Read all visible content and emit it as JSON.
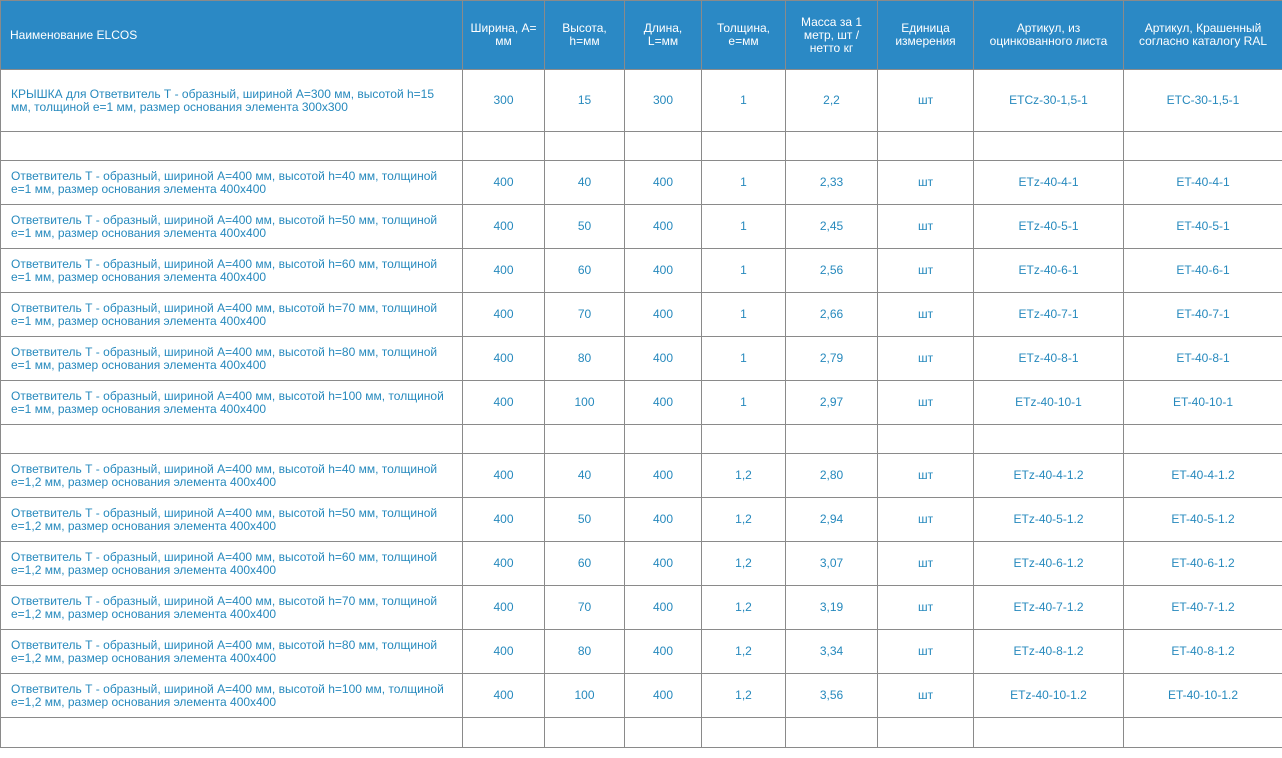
{
  "columns": [
    {
      "label": "Наименование ELCOS"
    },
    {
      "label": "Ширина, A= мм"
    },
    {
      "label": "Высота, h=мм"
    },
    {
      "label": "Длина, L=мм"
    },
    {
      "label": "Толщина, е=мм"
    },
    {
      "label": "Масса за 1 метр, шт / нетто кг"
    },
    {
      "label": "Единица измерения"
    },
    {
      "label": "Артикул, из оцинкованного листа"
    },
    {
      "label": "Артикул, Крашенный согласно каталогу RAL"
    }
  ],
  "rows": [
    {
      "kind": "data",
      "name": "КРЫШКА для Ответвитель Т - образный, шириной А=300 мм, высотой h=15 мм, толщиной е=1 мм, размер основания элемента 300х300",
      "width": "300",
      "height": "15",
      "length": "300",
      "thickness": "1",
      "mass": "2,2",
      "unit": "шт",
      "sku_galv": "ETCz-30-1,5-1",
      "sku_ral": "ETC-30-1,5-1"
    },
    {
      "kind": "spacer"
    },
    {
      "kind": "data",
      "name": "Ответвитель Т - образный, шириной А=400 мм, высотой h=40 мм, толщиной е=1 мм, размер основания элемента 400х400",
      "width": "400",
      "height": "40",
      "length": "400",
      "thickness": "1",
      "mass": "2,33",
      "unit": "шт",
      "sku_galv": "ETz-40-4-1",
      "sku_ral": "ET-40-4-1"
    },
    {
      "kind": "data",
      "name": "Ответвитель Т - образный, шириной А=400 мм, высотой h=50 мм, толщиной е=1 мм, размер основания элемента 400х400",
      "width": "400",
      "height": "50",
      "length": "400",
      "thickness": "1",
      "mass": "2,45",
      "unit": "шт",
      "sku_galv": "ETz-40-5-1",
      "sku_ral": "ET-40-5-1"
    },
    {
      "kind": "data",
      "name": "Ответвитель Т - образный, шириной А=400 мм, высотой h=60 мм, толщиной е=1 мм, размер основания элемента 400х400",
      "width": "400",
      "height": "60",
      "length": "400",
      "thickness": "1",
      "mass": "2,56",
      "unit": "шт",
      "sku_galv": "ETz-40-6-1",
      "sku_ral": "ET-40-6-1"
    },
    {
      "kind": "data",
      "name": "Ответвитель Т - образный, шириной А=400 мм, высотой h=70 мм, толщиной е=1 мм, размер основания элемента 400х400",
      "width": "400",
      "height": "70",
      "length": "400",
      "thickness": "1",
      "mass": "2,66",
      "unit": "шт",
      "sku_galv": "ETz-40-7-1",
      "sku_ral": "ET-40-7-1"
    },
    {
      "kind": "data",
      "name": "Ответвитель Т - образный, шириной А=400 мм, высотой h=80 мм, толщиной е=1 мм, размер основания элемента 400х400",
      "width": "400",
      "height": "80",
      "length": "400",
      "thickness": "1",
      "mass": "2,79",
      "unit": "шт",
      "sku_galv": "ETz-40-8-1",
      "sku_ral": "ET-40-8-1"
    },
    {
      "kind": "data",
      "name": "Ответвитель Т - образный, шириной А=400 мм, высотой h=100 мм, толщиной е=1 мм, размер основания элемента 400х400",
      "width": "400",
      "height": "100",
      "length": "400",
      "thickness": "1",
      "mass": "2,97",
      "unit": "шт",
      "sku_galv": "ETz-40-10-1",
      "sku_ral": "ET-40-10-1"
    },
    {
      "kind": "spacer"
    },
    {
      "kind": "data",
      "name": "Ответвитель Т - образный, шириной А=400 мм, высотой h=40 мм, толщиной е=1,2 мм, размер основания элемента 400х400",
      "width": "400",
      "height": "40",
      "length": "400",
      "thickness": "1,2",
      "mass": "2,80",
      "unit": "шт",
      "sku_galv": "ETz-40-4-1.2",
      "sku_ral": "ET-40-4-1.2"
    },
    {
      "kind": "data",
      "name": "Ответвитель Т - образный, шириной А=400 мм, высотой h=50 мм, толщиной е=1,2 мм, размер основания элемента 400х400",
      "width": "400",
      "height": "50",
      "length": "400",
      "thickness": "1,2",
      "mass": "2,94",
      "unit": "шт",
      "sku_galv": "ETz-40-5-1.2",
      "sku_ral": "ET-40-5-1.2"
    },
    {
      "kind": "data",
      "name": "Ответвитель Т - образный, шириной А=400 мм, высотой h=60 мм, толщиной е=1,2 мм, размер основания элемента 400х400",
      "width": "400",
      "height": "60",
      "length": "400",
      "thickness": "1,2",
      "mass": "3,07",
      "unit": "шт",
      "sku_galv": "ETz-40-6-1.2",
      "sku_ral": "ET-40-6-1.2"
    },
    {
      "kind": "data",
      "name": "Ответвитель Т - образный, шириной А=400 мм, высотой h=70 мм, толщиной е=1,2 мм, размер основания элемента 400х400",
      "width": "400",
      "height": "70",
      "length": "400",
      "thickness": "1,2",
      "mass": "3,19",
      "unit": "шт",
      "sku_galv": "ETz-40-7-1.2",
      "sku_ral": "ET-40-7-1.2"
    },
    {
      "kind": "data",
      "name": "Ответвитель Т - образный, шириной А=400 мм, высотой h=80 мм, толщиной е=1,2 мм, размер основания элемента 400х400",
      "width": "400",
      "height": "80",
      "length": "400",
      "thickness": "1,2",
      "mass": "3,34",
      "unit": "шт",
      "sku_galv": "ETz-40-8-1.2",
      "sku_ral": "ET-40-8-1.2"
    },
    {
      "kind": "data",
      "name": "Ответвитель Т - образный, шириной А=400 мм, высотой h=100 мм, толщиной е=1,2 мм, размер основания элемента 400х400",
      "width": "400",
      "height": "100",
      "length": "400",
      "thickness": "1,2",
      "mass": "3,56",
      "unit": "шт",
      "sku_galv": "ETz-40-10-1.2",
      "sku_ral": "ET-40-10-1.2"
    },
    {
      "kind": "spacer"
    }
  ],
  "colors": {
    "header_bg": "#2b89c5",
    "header_text": "#ffffff",
    "cell_text": "#2689bd",
    "border": "#8a8a8a"
  }
}
